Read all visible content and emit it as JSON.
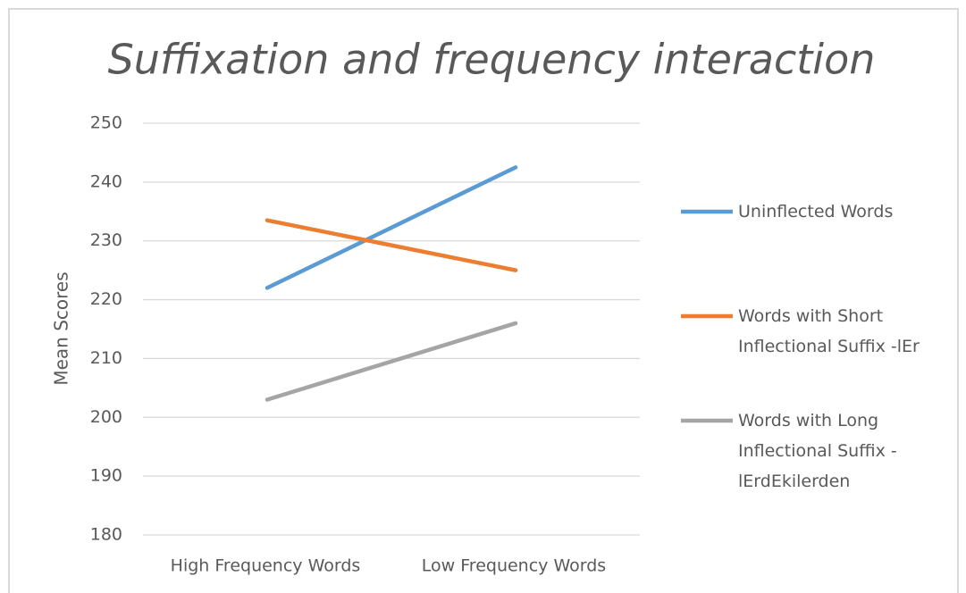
{
  "chart_data": {
    "type": "line",
    "title": "Suffixation and frequency interaction",
    "y_label": "Mean Scores",
    "categories": [
      "High Frequency Words",
      "Low Frequency Words"
    ],
    "series": [
      {
        "name": "Uninflected Words",
        "color": "#5b9bd5",
        "values": [
          222,
          242.5
        ]
      },
      {
        "name": "Words with Short Inflectional Suffix -lEr",
        "color": "#ed7d31",
        "values": [
          233.5,
          225
        ]
      },
      {
        "name": "Words with Long Inflectional Suffix -lErdEkilerden",
        "color": "#a5a5a5",
        "values": [
          203,
          216
        ]
      }
    ],
    "ylim": [
      180,
      250
    ],
    "yticks": [
      180,
      190,
      200,
      210,
      220,
      230,
      240,
      250
    ],
    "grid": true,
    "legend": "right"
  }
}
